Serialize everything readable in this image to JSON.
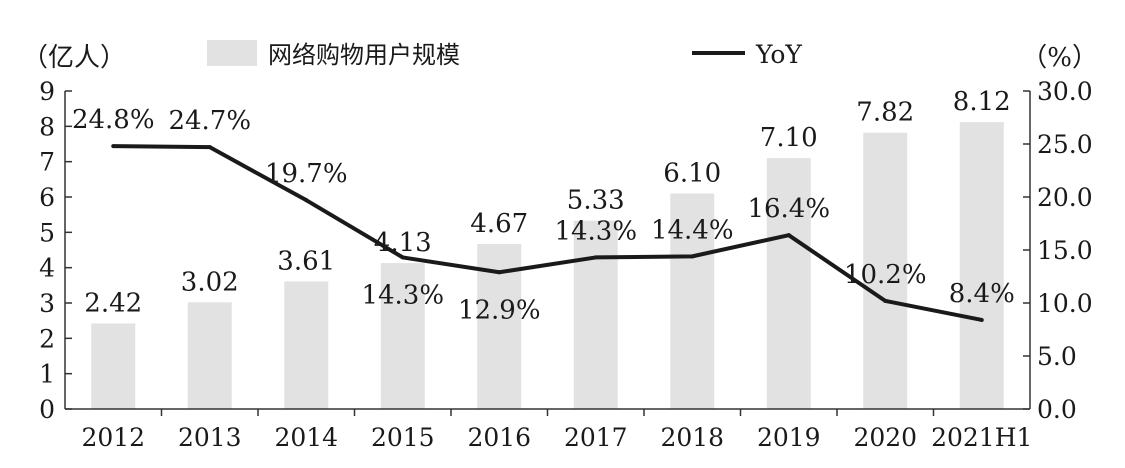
{
  "chart_data": {
    "type": "bar",
    "categories": [
      "2012",
      "2013",
      "2014",
      "2015",
      "2016",
      "2017",
      "2018",
      "2019",
      "2020",
      "2021H1"
    ],
    "series": [
      {
        "name": "网络购物用户规模",
        "type": "bar",
        "axis": "left",
        "values": [
          2.42,
          3.02,
          3.61,
          4.13,
          4.67,
          5.33,
          6.1,
          7.1,
          7.82,
          8.12
        ],
        "value_labels": [
          "2.42",
          "3.02",
          "3.61",
          "4.13",
          "4.67",
          "5.33",
          "6.10",
          "7.10",
          "7.82",
          "8.12"
        ],
        "color": "#e2e2e2"
      },
      {
        "name": "YoY",
        "type": "line",
        "axis": "right",
        "values": [
          24.8,
          24.7,
          19.7,
          14.3,
          12.9,
          14.3,
          14.4,
          16.4,
          10.2,
          8.4
        ],
        "value_labels": [
          "24.8%",
          "24.7%",
          "19.7%",
          "14.3%",
          "12.9%",
          "14.3%",
          "14.4%",
          "16.4%",
          "10.2%",
          "8.4%"
        ],
        "color": "#1a1a1a"
      }
    ],
    "y_left": {
      "unit_label": "（亿人）",
      "ylim": [
        0,
        9
      ],
      "ticks": [
        "0",
        "1",
        "2",
        "3",
        "4",
        "5",
        "6",
        "7",
        "8",
        "9"
      ]
    },
    "y_right": {
      "unit_label": "（%）",
      "ylim": [
        0,
        30
      ],
      "ticks": [
        "0.0",
        "5.0",
        "10.0",
        "15.0",
        "20.0",
        "25.0",
        "30.0"
      ]
    },
    "grid": false,
    "legend_position": "top-center"
  }
}
